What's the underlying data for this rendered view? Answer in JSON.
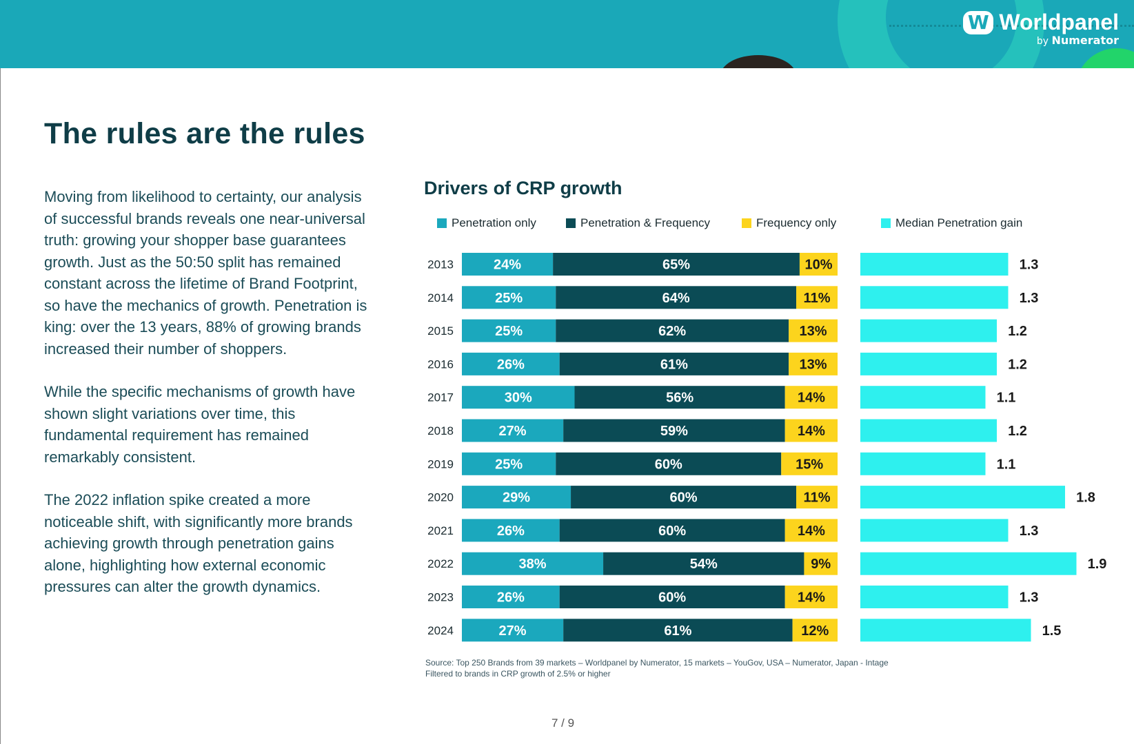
{
  "brand": {
    "name": "Worldpanel",
    "by": "by",
    "parent": "Numerator",
    "mark": "W"
  },
  "page": {
    "title": "The rules are the rules",
    "paragraphs": [
      "Moving from likelihood to certainty, our analysis of successful brands reveals one near-universal truth: growing your shopper base guarantees growth. Just as the 50:50 split has remained constant across the lifetime of Brand Footprint, so have the mechanics of growth. Penetration is king: over the 13 years, 88% of growing brands increased their number of shoppers.",
      "While the specific mechanisms of growth have shown slight variations over time, this fundamental requirement has remained remarkably consistent.",
      "The 2022 inflation spike created a more noticeable shift, with significantly more brands achieving growth through penetration gains alone, highlighting how external economic pressures can alter the growth dynamics."
    ],
    "pager": "7 / 9"
  },
  "chart_data": {
    "type": "bar",
    "title": "Drivers of CRP growth",
    "categories": [
      "2013",
      "2014",
      "2015",
      "2016",
      "2017",
      "2018",
      "2019",
      "2020",
      "2021",
      "2022",
      "2023",
      "2024"
    ],
    "stacked_series": [
      {
        "name": "Penetration only",
        "color": "#1ba8bd",
        "text_color": "#ffffff",
        "values": [
          24,
          25,
          25,
          26,
          30,
          27,
          25,
          29,
          26,
          38,
          26,
          27
        ]
      },
      {
        "name": "Penetration & Frequency",
        "color": "#0b4b55",
        "text_color": "#ffffff",
        "values": [
          65,
          64,
          62,
          61,
          56,
          59,
          60,
          60,
          60,
          54,
          60,
          61
        ]
      },
      {
        "name": "Frequency only",
        "color": "#fcd41d",
        "text_color": "#1a1a1a",
        "values": [
          10,
          11,
          13,
          13,
          14,
          14,
          15,
          11,
          14,
          9,
          14,
          12
        ]
      }
    ],
    "side_series": {
      "name": "Median Penetration gain",
      "color": "#2ef0ee",
      "values": [
        1.3,
        1.3,
        1.2,
        1.2,
        1.1,
        1.2,
        1.1,
        1.8,
        1.3,
        1.9,
        1.3,
        1.5
      ]
    },
    "value_suffix": "%",
    "stack_range": [
      0,
      100
    ],
    "side_range": [
      0,
      2.0
    ]
  },
  "source": {
    "line1": "Source: Top 250 Brands from 39 markets – Worldpanel by Numerator, 15 markets – YouGov, USA – Numerator, Japan - Intage",
    "line2": "Filtered to brands in CRP growth of 2.5% or higher"
  }
}
